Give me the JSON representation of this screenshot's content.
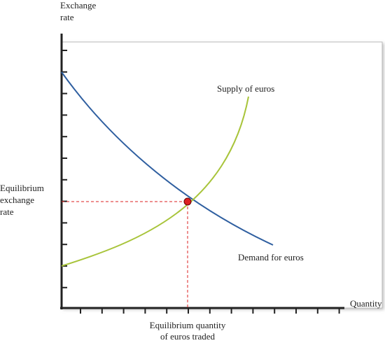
{
  "y_axis_label": [
    "Exchange",
    "rate"
  ],
  "x_axis_label": "Quantity",
  "supply_label": "Supply of euros",
  "demand_label": "Demand for euros",
  "equilibrium_rate_label": [
    "Equilibrium",
    "exchange",
    "rate"
  ],
  "equilibrium_quantity_label": [
    "Equilibrium quantity",
    "of euros traded"
  ]
}
